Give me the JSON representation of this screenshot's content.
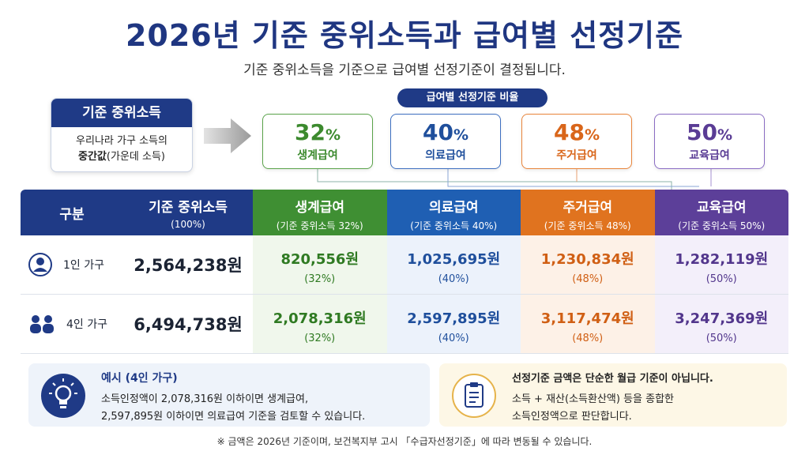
{
  "title": "2026년 기준 중위소득과 급여별 선정기준",
  "subtitle": "기준 중위소득을 기준으로 급여별 선정기준이 결정됩니다.",
  "median_box": {
    "header": "기준 중위소득",
    "line1": "우리나라 가구 소득의",
    "line2_bold": "중간값",
    "line2_rest": "(가운데 소득)"
  },
  "ratio_label": "급여별 선정기준 비율",
  "ratio_cards": [
    {
      "pct": "32",
      "unit": "%",
      "name": "생계급여",
      "color": "#3c8a2e",
      "border": "#5aa34a"
    },
    {
      "pct": "40",
      "unit": "%",
      "name": "의료급여",
      "color": "#1f4f9c",
      "border": "#3d6fc0"
    },
    {
      "pct": "48",
      "unit": "%",
      "name": "주거급여",
      "color": "#d9661a",
      "border": "#e8843a"
    },
    {
      "pct": "50",
      "unit": "%",
      "name": "교육급여",
      "color": "#5a3c95",
      "border": "#8a6cc3"
    }
  ],
  "table": {
    "header_label": "구분",
    "base": {
      "title": "기준 중위소득",
      "sub": "(100%)"
    },
    "rows": [
      {
        "label": "1인 가구",
        "icon": "person-icon",
        "base_value": "2,564,238원"
      },
      {
        "label": "4인 가구",
        "icon": "family-icon",
        "base_value": "6,494,738원"
      }
    ],
    "columns": [
      {
        "title": "생계급여",
        "sub": "(기준 중위소득 32%)",
        "head_color": "#3f8f33",
        "bg": "#f0f7ec",
        "color": "#2f7a22",
        "values": [
          {
            "v": "820,556원",
            "p": "(32%)"
          },
          {
            "v": "2,078,316원",
            "p": "(32%)"
          }
        ]
      },
      {
        "title": "의료급여",
        "sub": "(기준 중위소득 40%)",
        "head_color": "#1f5fb3",
        "bg": "#ecf2fb",
        "color": "#1f4f9c",
        "values": [
          {
            "v": "1,025,695원",
            "p": "(40%)"
          },
          {
            "v": "2,597,895원",
            "p": "(40%)"
          }
        ]
      },
      {
        "title": "주거급여",
        "sub": "(기준 중위소득 48%)",
        "head_color": "#e0731f",
        "bg": "#fdf1e7",
        "color": "#d05f14",
        "values": [
          {
            "v": "1,230,834원",
            "p": "(48%)"
          },
          {
            "v": "3,117,474원",
            "p": "(48%)"
          }
        ]
      },
      {
        "title": "교육급여",
        "sub": "(기준 중위소득 50%)",
        "head_color": "#5c3f99",
        "bg": "#f3effa",
        "color": "#52368c",
        "values": [
          {
            "v": "1,282,119원",
            "p": "(50%)"
          },
          {
            "v": "3,247,369원",
            "p": "(50%)"
          }
        ]
      }
    ]
  },
  "example_box": {
    "icon": "lightbulb-icon",
    "title": "예시 (4인 가구)",
    "line1": "소득인정액이 2,078,316원 이하이면 생계급여,",
    "line2": "2,597,895원 이하이면 의료급여 기준을 검토할 수 있습니다."
  },
  "note_box": {
    "icon": "clipboard-icon",
    "title": "선정기준 금액은 단순한 월급 기준이 아닙니다.",
    "line1": "소득 + 재산(소득환산액) 등을 종합한",
    "line2": "소득인정액으로 판단합니다."
  },
  "footnote": "※ 금액은 2026년 기준이며, 보건복지부 고시 「수급자선정기준」에 따라 변동될 수 있습니다."
}
